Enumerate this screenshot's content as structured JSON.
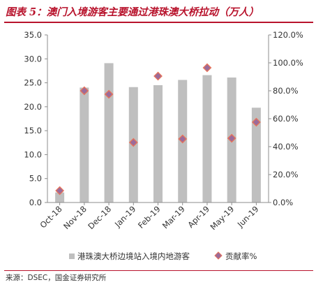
{
  "title": "图表 5：澳门入境游客主要通过港珠澳大桥拉动（万人）",
  "source": "来源：DSEC，国金证券研究所",
  "colors": {
    "accent": "#b8132c",
    "bar": "#bfbfbf",
    "marker_fill": "#9b6b9a",
    "marker_edge": "#e8735a",
    "axis": "#8c8c8c"
  },
  "chart_data": {
    "type": "bar",
    "categories": [
      "Oct-18",
      "Nov-18",
      "Dec-18",
      "Jan-19",
      "Feb-19",
      "Mar-19",
      "Apr-19",
      "May-19",
      "Jun-19"
    ],
    "series": [
      {
        "name": "港珠澳大桥边境站入境内地游客",
        "type": "bar",
        "axis": "left",
        "values": [
          2.1,
          24.0,
          29.1,
          24.1,
          24.5,
          25.6,
          26.6,
          26.1,
          19.8
        ]
      },
      {
        "name": "贡献率%",
        "type": "scatter",
        "axis": "right",
        "marker": "diamond",
        "values": [
          8.5,
          80.0,
          77.5,
          43.0,
          90.5,
          45.5,
          96.5,
          46.0,
          57.5
        ]
      }
    ],
    "y_left": {
      "min": 0,
      "max": 35,
      "step": 5,
      "tick_labels": [
        "0.0",
        "5.0",
        "10.0",
        "15.0",
        "20.0",
        "25.0",
        "30.0",
        "35.0"
      ]
    },
    "y_right": {
      "min": 0,
      "max": 120,
      "step": 20,
      "tick_labels": [
        "0.0%",
        "20.0%",
        "40.0%",
        "60.0%",
        "80.0%",
        "100.0%",
        "120.0%"
      ]
    },
    "grid": false,
    "legend_position": "bottom"
  }
}
